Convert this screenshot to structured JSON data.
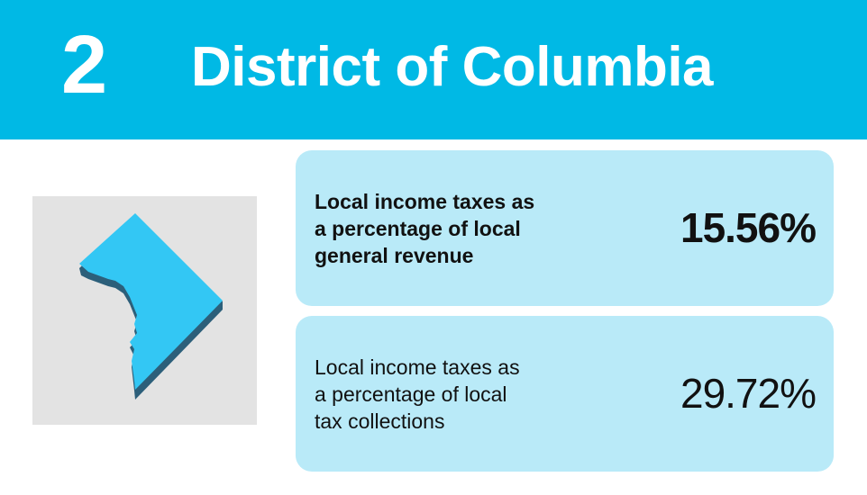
{
  "header": {
    "rank": "2",
    "title": "District of Columbia"
  },
  "stats": [
    {
      "label_lines": [
        "Local income taxes as",
        "a percentage of local",
        "general revenue"
      ],
      "value": "15.56%"
    },
    {
      "label_lines": [
        "Local income taxes as",
        "a percentage of local",
        "tax collections"
      ],
      "value": "29.72%"
    }
  ]
}
